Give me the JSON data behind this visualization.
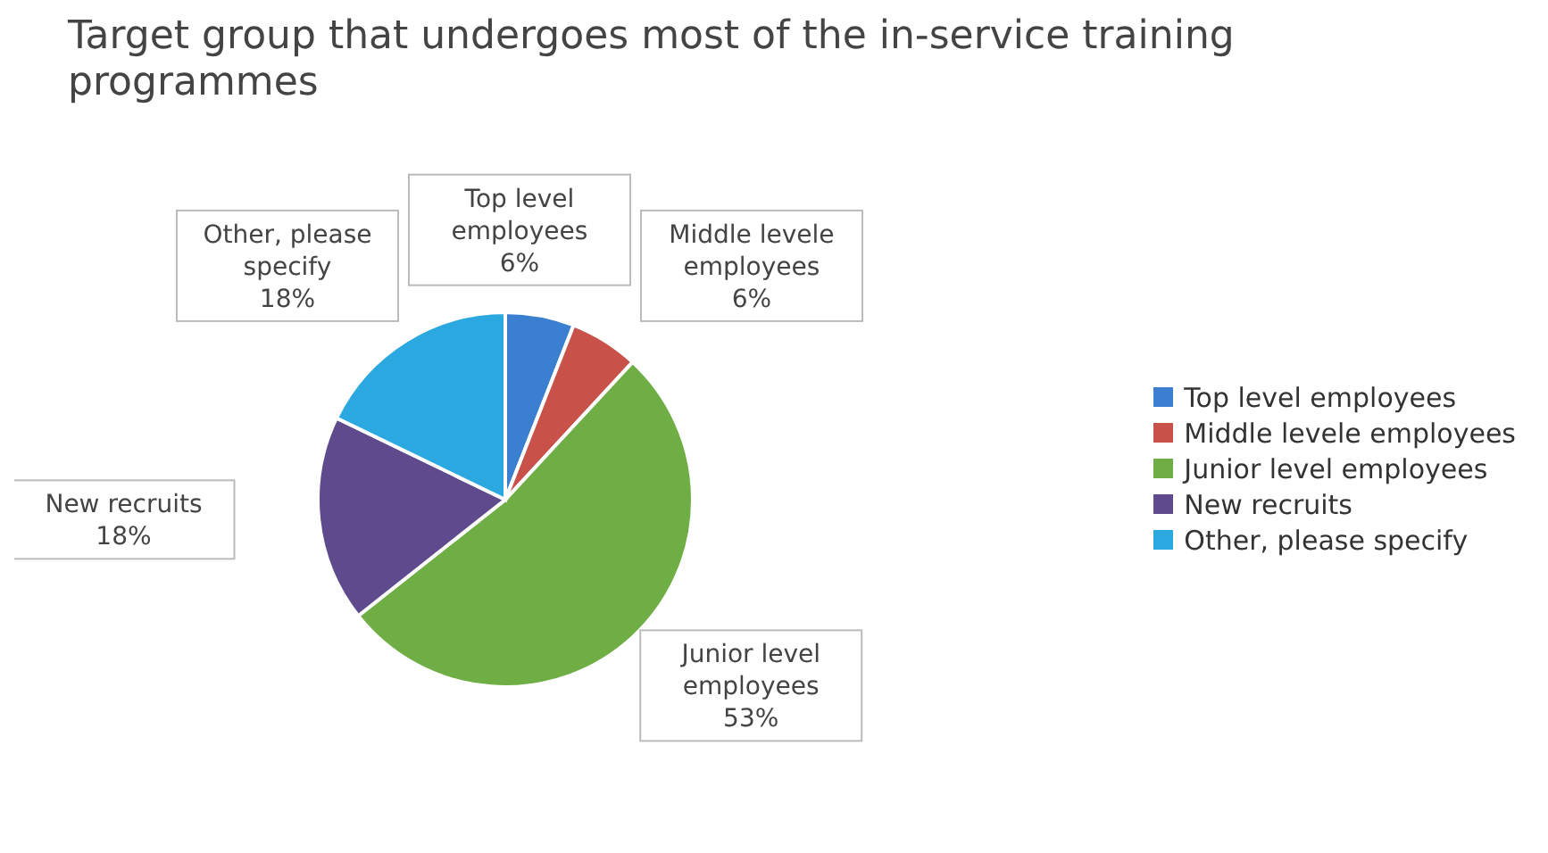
{
  "chart_data": {
    "type": "pie",
    "title": "Target group that undergoes most of the in-service training programmes",
    "categories": [
      "Top level employees",
      "Middle levele employees",
      "Junior level employees",
      "New recruits",
      "Other, please specify"
    ],
    "values": [
      6,
      6,
      53,
      18,
      18
    ],
    "colors": [
      "#3b7fd1",
      "#c8514a",
      "#6fad45",
      "#5e4a8c",
      "#2ba8e0"
    ],
    "value_labels": [
      "6%",
      "6%",
      "53%",
      "18%",
      "18%"
    ],
    "legend": "right"
  }
}
